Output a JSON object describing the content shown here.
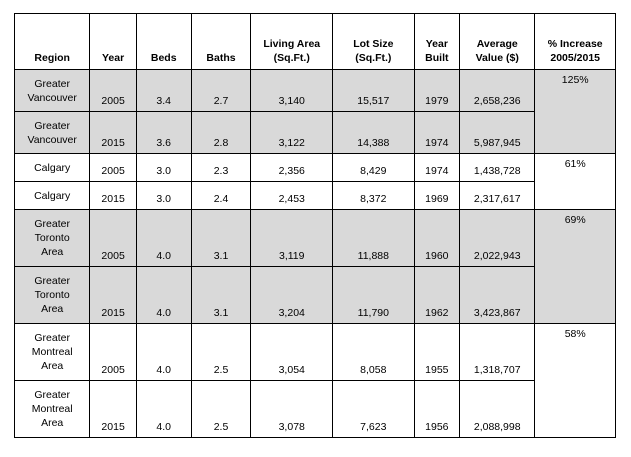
{
  "table": {
    "headers": [
      "Region",
      "Year",
      "Beds",
      "Baths",
      "Living Area (Sq.Ft.)",
      "Lot Size (Sq.Ft.)",
      "Year Built",
      "Average Value ($)",
      "% Increase 2005/2015"
    ],
    "header_lines": [
      [
        "Region"
      ],
      [
        "Year"
      ],
      [
        "Beds"
      ],
      [
        "Baths"
      ],
      [
        "Living Area",
        "(Sq.Ft.)"
      ],
      [
        "Lot Size",
        "(Sq.Ft.)"
      ],
      [
        "Year",
        "Built"
      ],
      [
        "Average",
        "Value ($)"
      ],
      [
        "% Increase",
        "2005/2015"
      ]
    ],
    "groups": [
      {
        "shaded": true,
        "increase": "125%",
        "rows": [
          {
            "region_lines": [
              "Greater",
              "Vancouver"
            ],
            "region": "Greater Vancouver",
            "year": "2005",
            "beds": "3.4",
            "baths": "2.7",
            "living_area": "3,140",
            "lot_size": "15,517",
            "year_built": "1979",
            "avg_value": "2,658,236"
          },
          {
            "region_lines": [
              "Greater",
              "Vancouver"
            ],
            "region": "Greater Vancouver",
            "year": "2015",
            "beds": "3.6",
            "baths": "2.8",
            "living_area": "3,122",
            "lot_size": "14,388",
            "year_built": "1974",
            "avg_value": "5,987,945"
          }
        ]
      },
      {
        "shaded": false,
        "increase": "61%",
        "rows": [
          {
            "region_lines": [
              "Calgary"
            ],
            "region": "Calgary",
            "year": "2005",
            "beds": "3.0",
            "baths": "2.3",
            "living_area": "2,356",
            "lot_size": "8,429",
            "year_built": "1974",
            "avg_value": "1,438,728"
          },
          {
            "region_lines": [
              "Calgary"
            ],
            "region": "Calgary",
            "year": "2015",
            "beds": "3.0",
            "baths": "2.4",
            "living_area": "2,453",
            "lot_size": "8,372",
            "year_built": "1969",
            "avg_value": "2,317,617"
          }
        ]
      },
      {
        "shaded": true,
        "increase": "69%",
        "rows": [
          {
            "region_lines": [
              "Greater",
              "Toronto",
              "Area"
            ],
            "region": "Greater Toronto Area",
            "year": "2005",
            "beds": "4.0",
            "baths": "3.1",
            "living_area": "3,119",
            "lot_size": "11,888",
            "year_built": "1960",
            "avg_value": "2,022,943"
          },
          {
            "region_lines": [
              "Greater",
              "Toronto",
              "Area"
            ],
            "region": "Greater Toronto Area",
            "year": "2015",
            "beds": "4.0",
            "baths": "3.1",
            "living_area": "3,204",
            "lot_size": "11,790",
            "year_built": "1962",
            "avg_value": "3,423,867"
          }
        ]
      },
      {
        "shaded": false,
        "increase": "58%",
        "rows": [
          {
            "region_lines": [
              "Greater",
              "Montreal",
              "Area"
            ],
            "region": "Greater Montreal Area",
            "year": "2005",
            "beds": "4.0",
            "baths": "2.5",
            "living_area": "3,054",
            "lot_size": "8,058",
            "year_built": "1955",
            "avg_value": "1,318,707"
          },
          {
            "region_lines": [
              "Greater",
              "Montreal",
              "Area"
            ],
            "region": "Greater Montreal Area",
            "year": "2015",
            "beds": "4.0",
            "baths": "2.5",
            "living_area": "3,078",
            "lot_size": "7,623",
            "year_built": "1956",
            "avg_value": "2,088,998"
          }
        ]
      }
    ]
  }
}
